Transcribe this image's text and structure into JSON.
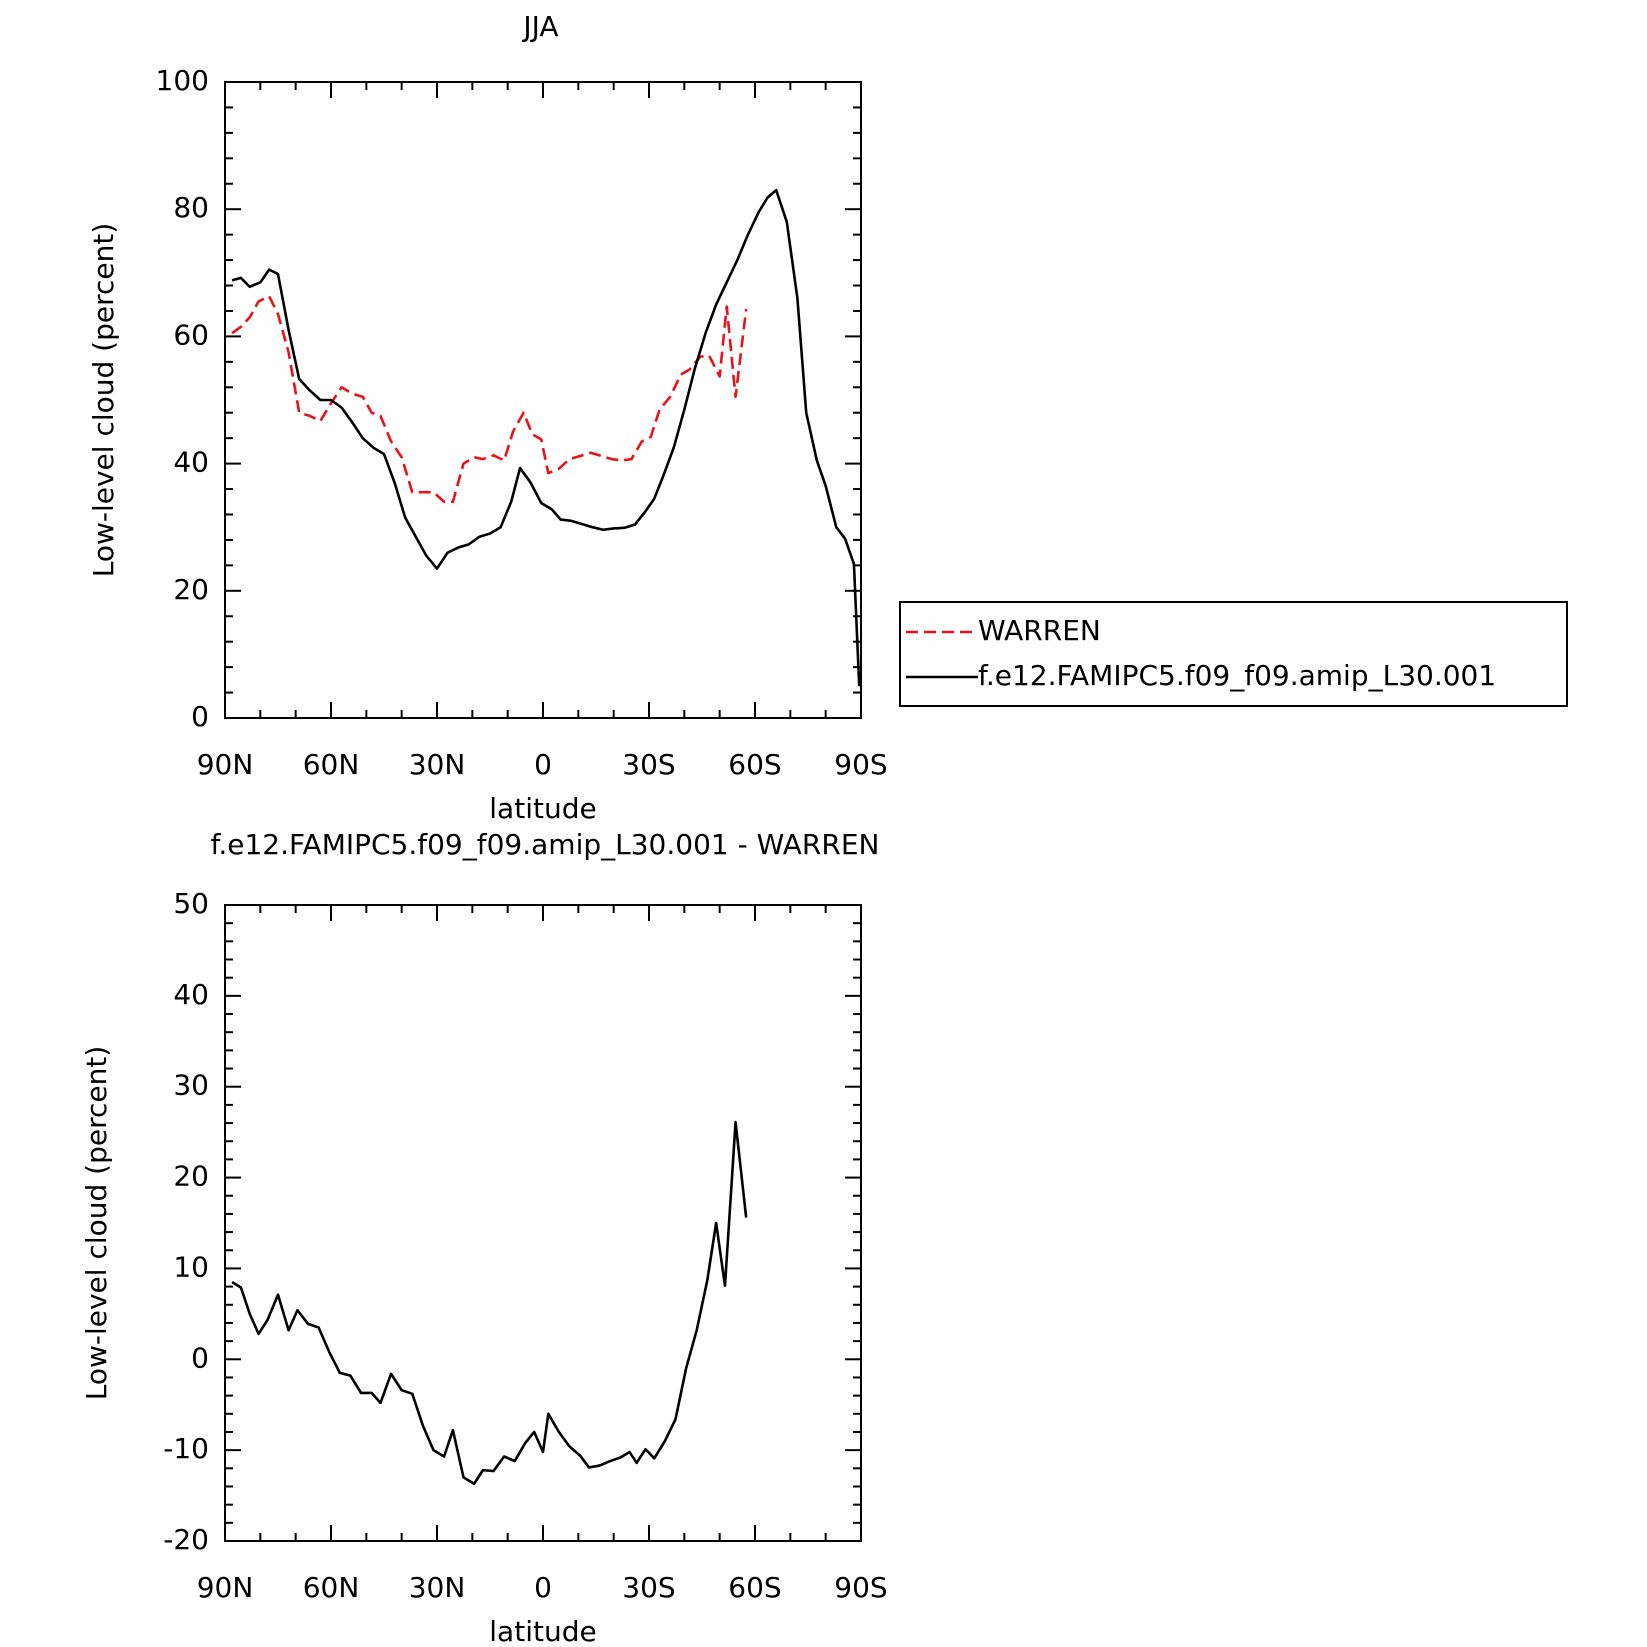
{
  "chart_data": [
    {
      "type": "line",
      "title": "JJA",
      "xlabel": "latitude",
      "ylabel": "Low-level cloud (percent)",
      "xlim": [
        90,
        -90
      ],
      "xticks": [
        {
          "value": 90,
          "label": "90N"
        },
        {
          "value": 60,
          "label": "60N"
        },
        {
          "value": 30,
          "label": "30N"
        },
        0,
        {
          "value": -30,
          "label": "30S"
        },
        {
          "value": -60,
          "label": "60S"
        },
        {
          "value": -90,
          "label": "90S"
        }
      ],
      "ylim": [
        0,
        100
      ],
      "yticks": [
        0,
        20,
        40,
        60,
        80,
        100
      ],
      "legend": "right",
      "series": [
        {
          "name": "WARREN",
          "color": "#e8121a",
          "dash": true,
          "x": [
            88,
            85.5,
            83,
            80.5,
            77.5,
            75,
            72,
            69,
            66,
            63,
            60,
            57,
            54,
            51,
            48.5,
            46,
            43,
            40,
            37,
            34,
            31,
            28,
            25.5,
            22.5,
            19.5,
            17,
            14,
            11,
            8.5,
            5.5,
            3,
            0.5,
            -1.5,
            -4.5,
            -7.5,
            -10.5,
            -13.5,
            -16.5,
            -19.5,
            -22.5,
            -25,
            -28,
            -30.5,
            -33,
            -36,
            -39,
            -41.5,
            -44.5,
            -47,
            -50,
            -52,
            -54.5,
            -57.5
          ],
          "values": [
            60.5,
            61.5,
            63,
            65.5,
            66.3,
            63.5,
            57.5,
            48,
            47.5,
            46.7,
            49.5,
            52,
            51,
            50.5,
            48,
            47.5,
            43.5,
            41,
            35.5,
            35.5,
            35.5,
            34,
            34,
            40,
            41,
            40.7,
            41.3,
            40.5,
            45,
            48,
            44.6,
            43.8,
            38.5,
            39.2,
            40.7,
            41.2,
            41.7,
            41.2,
            40.7,
            40.5,
            40.7,
            43.5,
            44.2,
            48.5,
            50.5,
            54,
            54.8,
            56.8,
            57,
            53.7,
            64.7,
            50.5,
            64.3
          ]
        },
        {
          "name": "f.e12.FAMIPC5.f09_f09.amip_L30.001",
          "color": "#000000",
          "dash": false,
          "x": [
            88,
            85.5,
            83,
            80,
            77.5,
            75,
            72,
            69,
            66,
            63,
            60,
            57,
            54,
            51,
            48,
            45,
            42,
            39,
            36,
            33,
            30,
            27,
            24,
            21,
            18,
            15,
            12,
            9,
            6.5,
            3.5,
            0.5,
            -2.5,
            -5,
            -8,
            -11,
            -14,
            -17,
            -20,
            -23,
            -26,
            -29,
            -31.5,
            -34,
            -37,
            -40,
            -43,
            -46,
            -49,
            -52,
            -55,
            -58,
            -61,
            -63.5,
            -66,
            -69,
            -72,
            -74.5,
            -77.5,
            -80,
            -83,
            -85.5,
            -88,
            -89.5
          ],
          "values": [
            68.8,
            69.2,
            67.8,
            68.5,
            70.5,
            69.8,
            61,
            53.3,
            51.5,
            50,
            50,
            48.8,
            46.5,
            44,
            42.5,
            41.5,
            37,
            31.5,
            28.5,
            25.5,
            23.5,
            26,
            26.8,
            27.3,
            28.5,
            29,
            30,
            34,
            39.3,
            37,
            33.8,
            32.8,
            31.2,
            31,
            30.5,
            30,
            29.6,
            29.8,
            29.9,
            30.4,
            32.5,
            34.5,
            38,
            42.5,
            48.5,
            55,
            60.5,
            65,
            68.5,
            72,
            76,
            79.5,
            81.8,
            83,
            78,
            66,
            48,
            40.5,
            36.5,
            30,
            28.2,
            24.2,
            5
          ]
        }
      ]
    },
    {
      "type": "line",
      "title": "f.e12.FAMIPC5.f09_f09.amip_L30.001 - WARREN",
      "xlabel": "latitude",
      "ylabel": "Low-level cloud (percent)",
      "xlim": [
        90,
        -90
      ],
      "xticks": [
        {
          "value": 90,
          "label": "90N"
        },
        {
          "value": 60,
          "label": "60N"
        },
        {
          "value": 30,
          "label": "30N"
        },
        0,
        {
          "value": -30,
          "label": "30S"
        },
        {
          "value": -60,
          "label": "60S"
        },
        {
          "value": -90,
          "label": "90S"
        }
      ],
      "ylim": [
        -20,
        50
      ],
      "yticks": [
        -20,
        -10,
        0,
        10,
        20,
        30,
        40,
        50
      ],
      "series": [
        {
          "color": "#000000",
          "dash": false,
          "x": [
            88,
            85.5,
            83,
            80.5,
            78,
            75,
            72,
            69.5,
            66.5,
            63.5,
            60.5,
            57.5,
            54.5,
            51.5,
            48.5,
            46,
            43,
            40,
            37,
            34,
            31,
            28,
            25.5,
            22.5,
            19.5,
            17,
            14,
            11,
            8,
            5,
            2.5,
            0,
            -1.5,
            -4.5,
            -7.5,
            -10.5,
            -13,
            -16,
            -19,
            -22,
            -24.5,
            -26.5,
            -29,
            -31.5,
            -34.5,
            -37.5,
            -40.5,
            -43.5,
            -46.5,
            -49,
            -51.5,
            -54.5,
            -57.5
          ],
          "values": [
            8.5,
            7.9,
            5,
            2.8,
            4.3,
            7.1,
            3.2,
            5.4,
            3.9,
            3.5,
            0.8,
            -1.5,
            -1.8,
            -3.7,
            -3.7,
            -4.8,
            -1.6,
            -3.4,
            -3.8,
            -7.3,
            -10,
            -10.7,
            -7.8,
            -13,
            -13.7,
            -12.2,
            -12.3,
            -10.7,
            -11.2,
            -9.2,
            -8,
            -10.2,
            -6,
            -8,
            -9.6,
            -10.6,
            -11.9,
            -11.7,
            -11.2,
            -10.8,
            -10.2,
            -11.4,
            -9.9,
            -10.9,
            -9,
            -6.6,
            -1,
            3.2,
            8.7,
            15,
            8.1,
            26.1,
            15.6
          ]
        }
      ]
    }
  ]
}
